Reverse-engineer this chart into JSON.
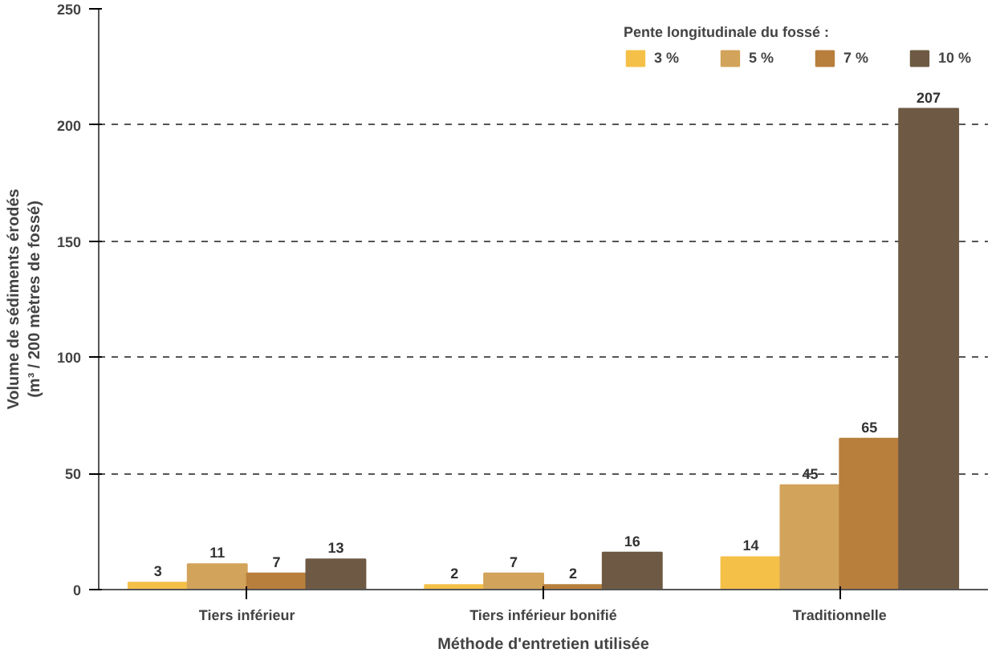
{
  "chart_data": {
    "type": "bar",
    "xlabel": "Méthode d'entretien utilisée",
    "ylabel": "Volume de sédiments érodés\n(m³ / 200 mètres de fossé)",
    "legend_title": "Pente longitudinale du fossé :",
    "categories": [
      "Tiers inférieur",
      "Tiers inférieur bonifié",
      "Traditionnelle"
    ],
    "series": [
      {
        "name": "3 %",
        "color": "#f5c048",
        "values": [
          3,
          2,
          14
        ]
      },
      {
        "name": "5 %",
        "color": "#d2a35a",
        "values": [
          11,
          7,
          45
        ]
      },
      {
        "name": "7 %",
        "color": "#b87f3c",
        "values": [
          7,
          2,
          65
        ]
      },
      {
        "name": "10 %",
        "color": "#6e5a44",
        "values": [
          13,
          16,
          207
        ]
      }
    ],
    "ylim": [
      0,
      250
    ],
    "yticks": [
      0,
      50,
      100,
      150,
      200,
      250
    ],
    "grid": "y",
    "legend": "top",
    "data_labels": true
  }
}
